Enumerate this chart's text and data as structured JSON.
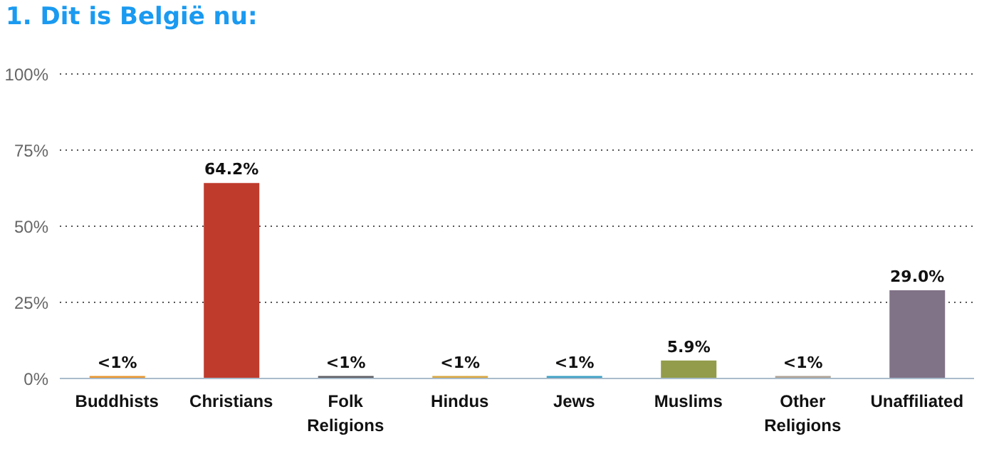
{
  "chart_data": {
    "type": "bar",
    "title": "1. Dit is België nu:",
    "categories": [
      "Buddhists",
      "Christians",
      "Folk Religions",
      "Hindus",
      "Jews",
      "Muslims",
      "Other Religions",
      "Unaffiliated"
    ],
    "values": [
      0.8,
      64.2,
      0.8,
      0.8,
      0.8,
      5.9,
      0.8,
      29.0
    ],
    "colors": [
      "#e8952f",
      "#bf3b2c",
      "#5d5d63",
      "#d9a640",
      "#3b9fc4",
      "#929c4a",
      "#ada294",
      "#807287"
    ],
    "value_labels": [
      "<1%",
      "64.2%",
      "<1%",
      "<1%",
      "<1%",
      "5.9%",
      "<1%",
      "29.0%"
    ],
    "ylim": [
      0,
      100
    ],
    "yticks": [
      {
        "value": 0,
        "label": "0%"
      },
      {
        "value": 25,
        "label": "25%"
      },
      {
        "value": 50,
        "label": "50%"
      },
      {
        "value": 75,
        "label": "75%"
      },
      {
        "value": 100,
        "label": "100%"
      }
    ],
    "grid": "y"
  }
}
